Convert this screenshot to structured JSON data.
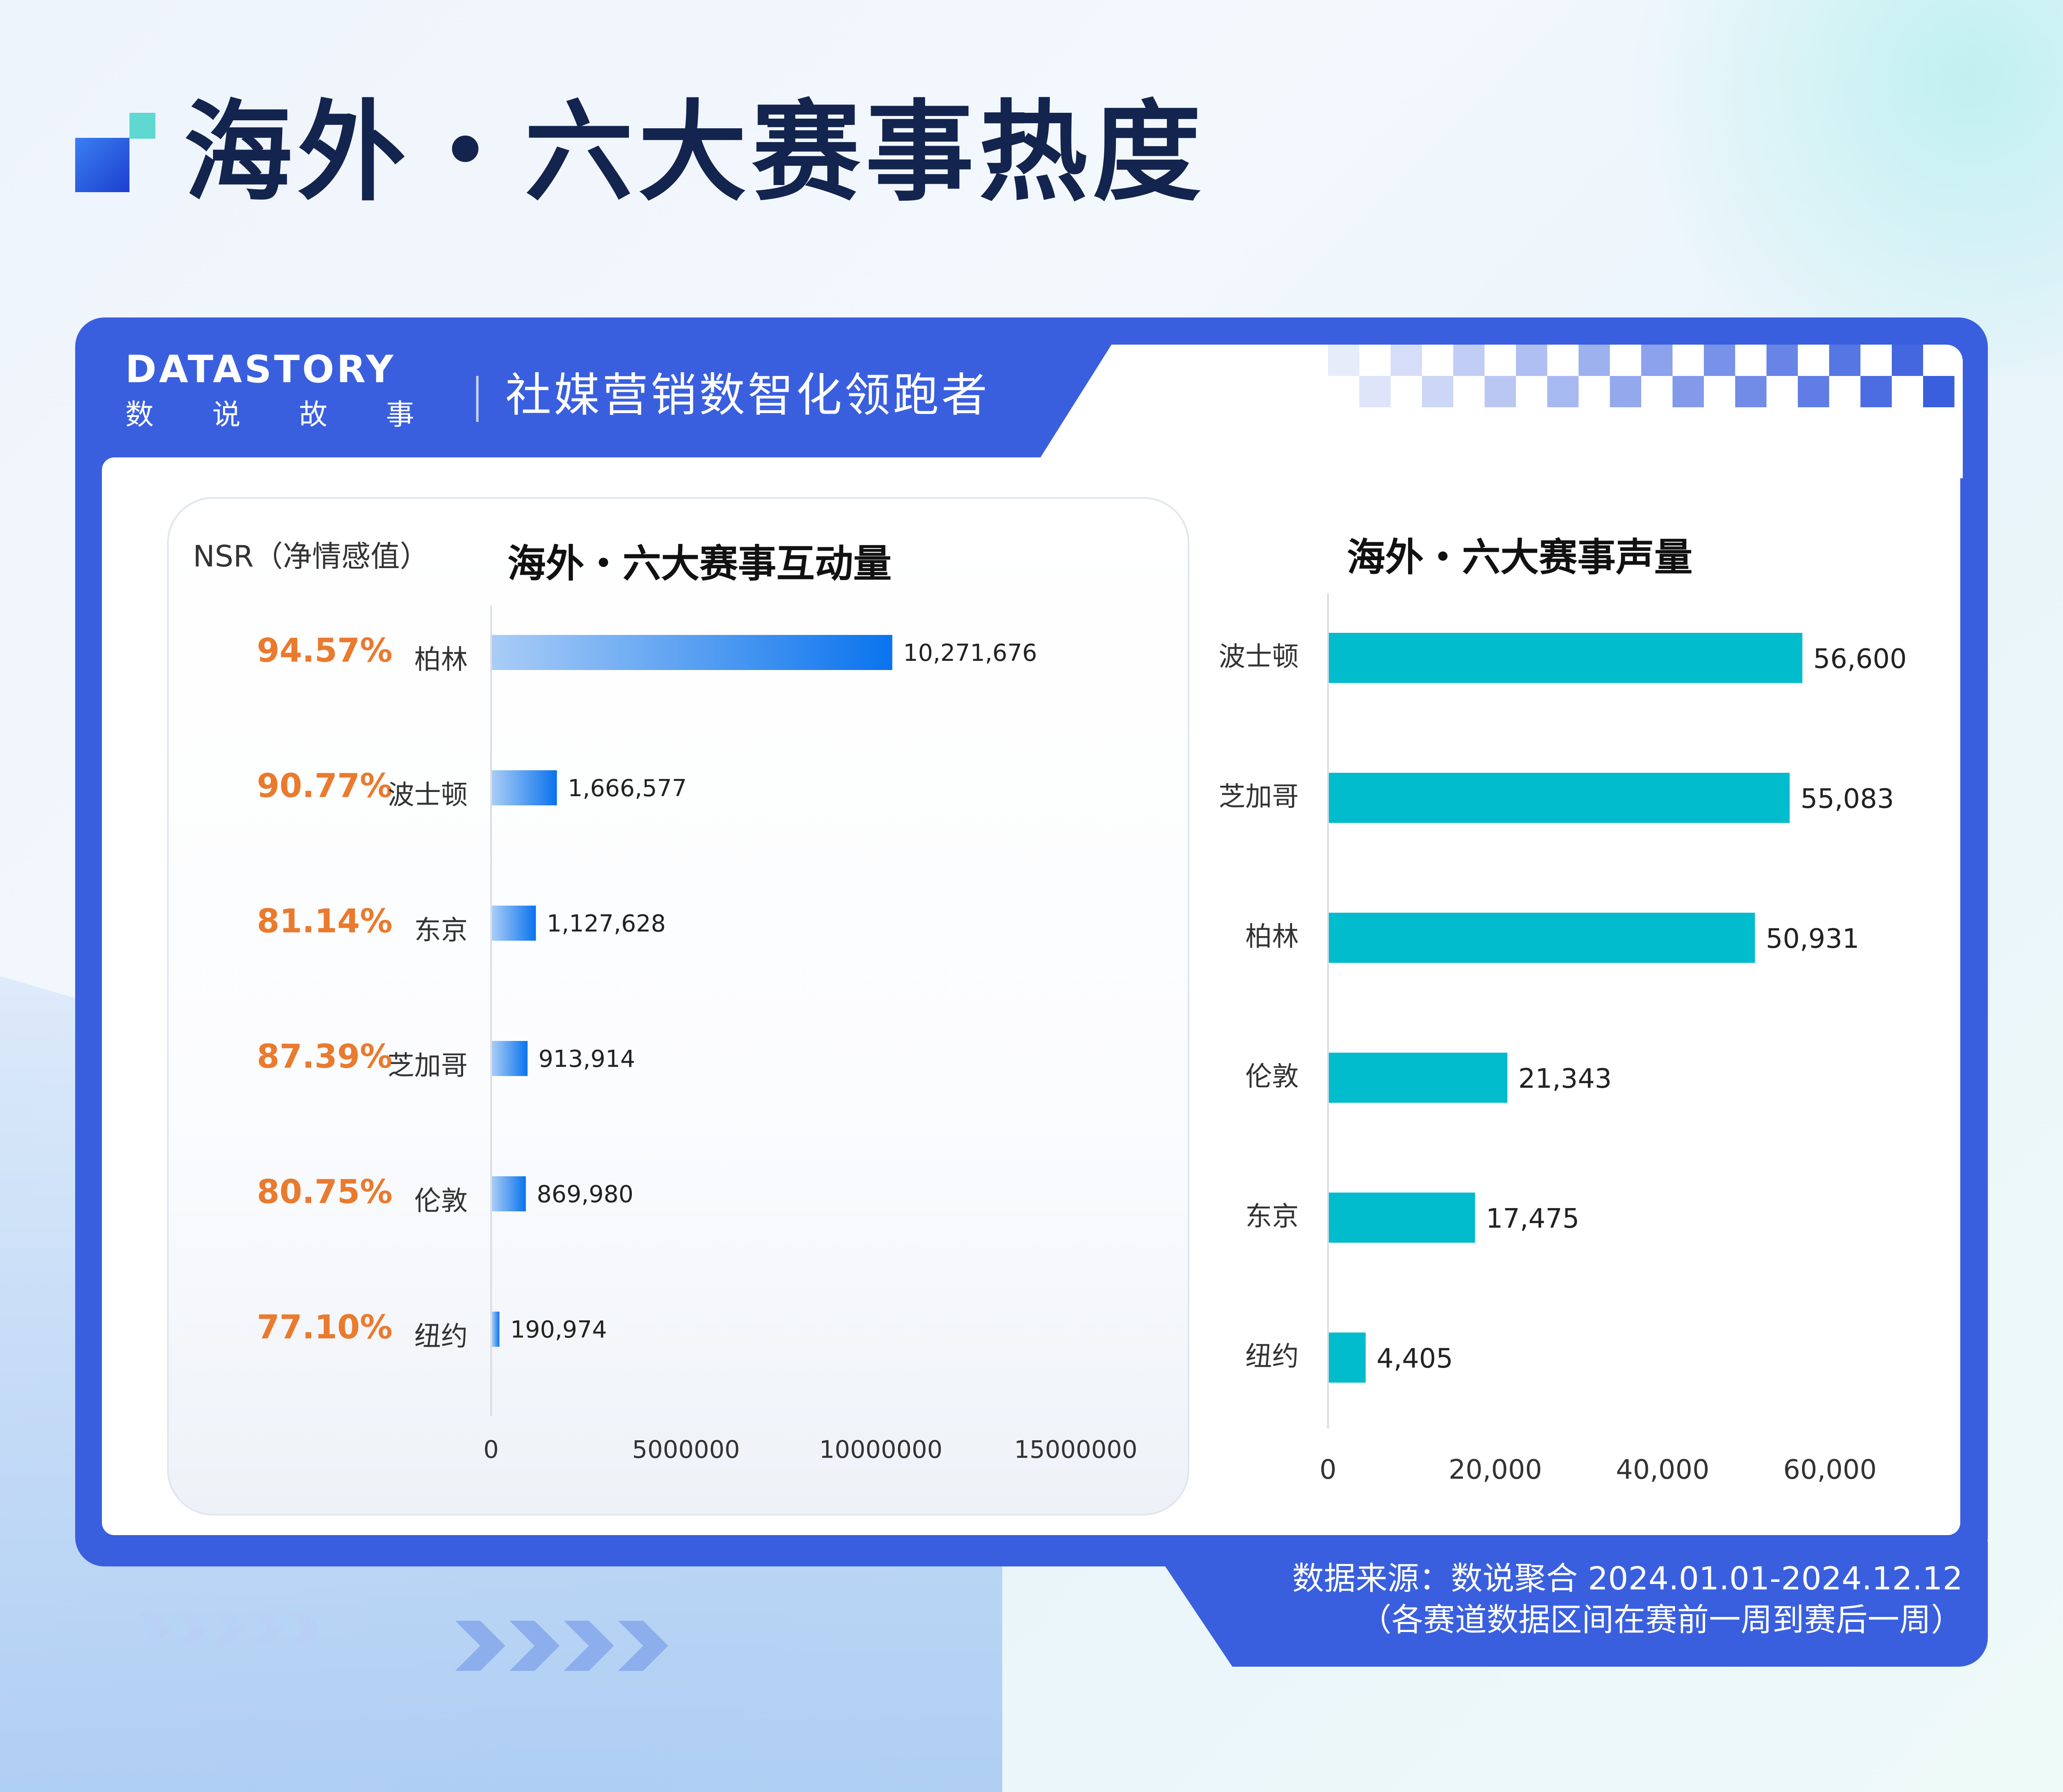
{
  "page": {
    "title": "海外・六大赛事热度"
  },
  "header": {
    "logo_text": "DATASTORY",
    "logo_sub": "数说故事",
    "slogan": "社媒营销数智化领跑者"
  },
  "nsr": {
    "label": "NSR（净情感值）",
    "values": [
      "94.57%",
      "90.77%",
      "81.14%",
      "87.39%",
      "80.75%",
      "77.10%"
    ]
  },
  "chart_data": [
    {
      "type": "bar",
      "orientation": "horizontal",
      "title": "海外・六大赛事互动量",
      "categories": [
        "柏林",
        "波士顿",
        "东京",
        "芝加哥",
        "伦敦",
        "纽约"
      ],
      "values": [
        10271676,
        1666577,
        1127628,
        913914,
        869980,
        190974
      ],
      "value_labels": [
        "10,271,676",
        "1,666,577",
        "1,127,628",
        "913,914",
        "869,980",
        "190,974"
      ],
      "xlim": [
        0,
        15000000
      ],
      "x_ticks": [
        "0",
        "5000000",
        "10000000",
        "15000000"
      ],
      "xlabel": "",
      "ylabel": "",
      "color_start": "#a9cdf6",
      "color_end": "#0a73ee",
      "grid": false
    },
    {
      "type": "bar",
      "orientation": "horizontal",
      "title": "海外・六大赛事声量",
      "categories": [
        "波士顿",
        "芝加哥",
        "柏林",
        "伦敦",
        "东京",
        "纽约"
      ],
      "values": [
        56600,
        55083,
        50931,
        21343,
        17475,
        4405
      ],
      "value_labels": [
        "56,600",
        "55,083",
        "50,931",
        "21,343",
        "17,475",
        "4,405"
      ],
      "xlim": [
        0,
        65000
      ],
      "x_ticks": [
        "0",
        "20,000",
        "40,000",
        "60,000"
      ],
      "x_tick_values": [
        0,
        20000,
        40000,
        60000
      ],
      "xlabel": "",
      "ylabel": "",
      "color": "#00bccc",
      "grid": false
    }
  ],
  "footer": {
    "source_line1": "数据来源：数说聚合 2024.01.01-2024.12.12",
    "source_line2": "（各赛道数据区间在赛前一周到赛后一周）"
  },
  "colors": {
    "brand_blue": "#3a5fde",
    "nsr_orange": "#ea7a2e",
    "title_navy": "#13244f"
  }
}
